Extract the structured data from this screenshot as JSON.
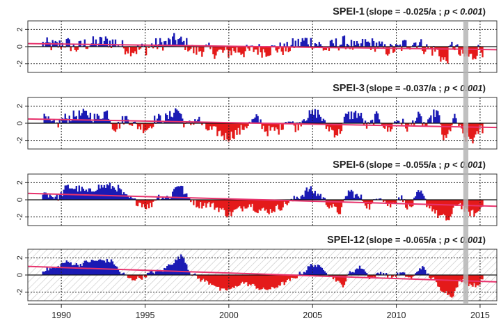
{
  "chart_data": {
    "type": "area",
    "x_axis": {
      "range": [
        1988.0,
        2016.0
      ],
      "ticks": [
        1990,
        1995,
        2000,
        2005,
        2010,
        2015
      ],
      "tick_labels": [
        "1990",
        "1995",
        "2000",
        "2005",
        "2010",
        "2015"
      ]
    },
    "y_axis": {
      "range": [
        -3,
        3
      ],
      "ticks": [
        2,
        0,
        -2
      ],
      "tick_labels": [
        "2",
        "0",
        "-2"
      ]
    },
    "grid": true,
    "colors": {
      "positive": "#1a1ab4",
      "negative": "#e41a1a",
      "trend": "#e8336d",
      "highlight": "#b5b5b5",
      "grid": "#222222"
    },
    "highlight_band_x": [
      2014.0,
      2014.3
    ],
    "panels": [
      {
        "title": "SPEI-1",
        "stat_open": "(slope = -0.025/a ; ",
        "stat_p": "p < 0.001",
        "stat_close": ")",
        "slope": -0.025,
        "trend_start": 0.35,
        "trend_end": -0.35,
        "amplitude": 0.85,
        "hatched": false,
        "anchors": [
          [
            1988.9,
            0.3
          ],
          [
            1989.6,
            0.1
          ],
          [
            1990.3,
            0.4
          ],
          [
            1990.9,
            -0.2
          ],
          [
            1991.4,
            0.3
          ],
          [
            1992.0,
            0.4
          ],
          [
            1992.6,
            0.6
          ],
          [
            1993.2,
            0.5
          ],
          [
            1993.8,
            -0.1
          ],
          [
            1994.4,
            -0.4
          ],
          [
            1995.0,
            -0.2
          ],
          [
            1995.6,
            0.2
          ],
          [
            1996.2,
            0.4
          ],
          [
            1996.9,
            0.8
          ],
          [
            1997.4,
            0.3
          ],
          [
            1998.0,
            -0.5
          ],
          [
            1998.6,
            -0.3
          ],
          [
            1999.2,
            -0.6
          ],
          [
            1999.8,
            -0.7
          ],
          [
            2000.4,
            -0.4
          ],
          [
            2001.0,
            -0.6
          ],
          [
            2001.6,
            -0.3
          ],
          [
            2002.2,
            -0.5
          ],
          [
            2002.8,
            -0.2
          ],
          [
            2003.4,
            -0.3
          ],
          [
            2004.0,
            0.3
          ],
          [
            2004.6,
            0.7
          ],
          [
            2005.2,
            0.4
          ],
          [
            2005.8,
            -0.3
          ],
          [
            2006.4,
            0.3
          ],
          [
            2007.0,
            0.5
          ],
          [
            2007.6,
            -0.2
          ],
          [
            2008.2,
            0.4
          ],
          [
            2008.8,
            0.2
          ],
          [
            2009.4,
            -0.4
          ],
          [
            2010.0,
            -0.3
          ],
          [
            2010.6,
            0.3
          ],
          [
            2011.2,
            0.5
          ],
          [
            2011.8,
            -0.2
          ],
          [
            2012.4,
            -0.5
          ],
          [
            2012.9,
            -1.7
          ],
          [
            2013.4,
            0.2
          ],
          [
            2013.9,
            -1.1
          ],
          [
            2014.5,
            -1.2
          ],
          [
            2014.9,
            -0.4
          ]
        ]
      },
      {
        "title": "SPEI-3",
        "stat_open": "(slope = -0.037/a ; ",
        "stat_p": "p < 0.001",
        "stat_close": ")",
        "slope": -0.037,
        "trend_start": 0.5,
        "trend_end": -0.5,
        "amplitude": 0.65,
        "hatched": false,
        "anchors": [
          [
            1988.9,
            0.5
          ],
          [
            1989.6,
            -0.2
          ],
          [
            1990.3,
            0.6
          ],
          [
            1990.9,
            0.9
          ],
          [
            1991.5,
            1.1
          ],
          [
            1992.1,
            0.6
          ],
          [
            1992.7,
            1.3
          ],
          [
            1993.2,
            -0.5
          ],
          [
            1993.9,
            0.6
          ],
          [
            1994.5,
            -0.3
          ],
          [
            1995.1,
            -0.6
          ],
          [
            1995.7,
            0.5
          ],
          [
            1996.3,
            0.6
          ],
          [
            1996.9,
            1.6
          ],
          [
            1997.5,
            -0.3
          ],
          [
            1998.1,
            0.5
          ],
          [
            1998.7,
            -0.7
          ],
          [
            1999.3,
            -1.0
          ],
          [
            1999.9,
            -1.6
          ],
          [
            2000.5,
            -1.1
          ],
          [
            2001.1,
            -0.2
          ],
          [
            2001.7,
            0.5
          ],
          [
            2002.3,
            -0.9
          ],
          [
            2002.9,
            -0.8
          ],
          [
            2003.5,
            0.4
          ],
          [
            2004.0,
            -0.4
          ],
          [
            2004.6,
            0.8
          ],
          [
            2005.3,
            1.2
          ],
          [
            2005.9,
            -0.5
          ],
          [
            2006.5,
            -1.2
          ],
          [
            2007.1,
            0.9
          ],
          [
            2007.7,
            1.1
          ],
          [
            2008.3,
            -0.4
          ],
          [
            2008.9,
            0.8
          ],
          [
            2009.5,
            -0.8
          ],
          [
            2010.1,
            0.4
          ],
          [
            2010.7,
            -0.5
          ],
          [
            2011.3,
            0.7
          ],
          [
            2011.8,
            -0.3
          ],
          [
            2012.4,
            1.3
          ],
          [
            2012.9,
            -2.0
          ],
          [
            2013.5,
            0.5
          ],
          [
            2014.1,
            -1.7
          ],
          [
            2014.7,
            -1.9
          ],
          [
            2015.0,
            -0.6
          ]
        ]
      },
      {
        "title": "SPEI-6",
        "stat_open": "(slope = -0.055/a ; ",
        "stat_p": "p < 0.001",
        "stat_close": ")",
        "slope": -0.055,
        "trend_start": 0.75,
        "trend_end": -0.75,
        "amplitude": 0.45,
        "hatched": false,
        "anchors": [
          [
            1988.9,
            0.8
          ],
          [
            1989.8,
            0.3
          ],
          [
            1990.4,
            1.5
          ],
          [
            1991.0,
            1.3
          ],
          [
            1991.6,
            0.9
          ],
          [
            1992.2,
            1.5
          ],
          [
            1992.8,
            1.6
          ],
          [
            1993.3,
            1.4
          ],
          [
            1993.9,
            0.3
          ],
          [
            1994.6,
            -0.3
          ],
          [
            1995.2,
            -0.8
          ],
          [
            1995.8,
            0.4
          ],
          [
            1996.4,
            0.3
          ],
          [
            1997.0,
            1.8
          ],
          [
            1997.6,
            0.2
          ],
          [
            1998.2,
            -0.6
          ],
          [
            1998.8,
            -0.5
          ],
          [
            1999.4,
            -1.0
          ],
          [
            2000.0,
            -1.7
          ],
          [
            2000.6,
            -1.1
          ],
          [
            2001.2,
            -0.5
          ],
          [
            2001.8,
            -1.2
          ],
          [
            2002.4,
            -1.3
          ],
          [
            2003.0,
            -0.9
          ],
          [
            2003.6,
            -0.3
          ],
          [
            2004.2,
            0.4
          ],
          [
            2004.8,
            1.2
          ],
          [
            2005.4,
            0.6
          ],
          [
            2006.0,
            -0.6
          ],
          [
            2006.6,
            -1.4
          ],
          [
            2007.2,
            1.0
          ],
          [
            2007.8,
            0.3
          ],
          [
            2008.4,
            -0.8
          ],
          [
            2009.0,
            0.5
          ],
          [
            2009.6,
            -0.7
          ],
          [
            2010.2,
            0.3
          ],
          [
            2010.8,
            -0.9
          ],
          [
            2011.4,
            0.8
          ],
          [
            2012.0,
            -0.8
          ],
          [
            2012.6,
            -1.9
          ],
          [
            2013.1,
            -2.3
          ],
          [
            2013.7,
            -0.4
          ],
          [
            2014.3,
            -1.5
          ],
          [
            2014.8,
            -1.6
          ],
          [
            2015.1,
            -0.8
          ]
        ]
      },
      {
        "title": "SPEI-12",
        "stat_open": "(slope = -0.065/a ; ",
        "stat_p": "p < 0.001",
        "stat_close": ")",
        "slope": -0.065,
        "trend_start": 1.0,
        "trend_end": -0.8,
        "amplitude": 0.25,
        "hatched": true,
        "anchors": [
          [
            1988.9,
            0.6
          ],
          [
            1989.6,
            0.8
          ],
          [
            1990.3,
            1.5
          ],
          [
            1991.0,
            1.2
          ],
          [
            1991.7,
            1.6
          ],
          [
            1992.4,
            1.7
          ],
          [
            1993.0,
            1.6
          ],
          [
            1993.6,
            0.2
          ],
          [
            1994.2,
            -0.5
          ],
          [
            1994.8,
            -0.3
          ],
          [
            1995.4,
            0.3
          ],
          [
            1996.0,
            0.5
          ],
          [
            1996.6,
            1.4
          ],
          [
            1997.2,
            2.2
          ],
          [
            1997.8,
            0.1
          ],
          [
            1998.4,
            -0.6
          ],
          [
            1999.0,
            -1.0
          ],
          [
            1999.6,
            -1.8
          ],
          [
            2000.2,
            -1.6
          ],
          [
            2000.8,
            -0.9
          ],
          [
            2001.4,
            -1.2
          ],
          [
            2002.0,
            -1.7
          ],
          [
            2002.6,
            -1.6
          ],
          [
            2003.2,
            -1.0
          ],
          [
            2003.8,
            -0.5
          ],
          [
            2004.4,
            0.3
          ],
          [
            2005.0,
            1.2
          ],
          [
            2005.6,
            0.8
          ],
          [
            2006.2,
            -0.3
          ],
          [
            2006.8,
            -1.2
          ],
          [
            2007.3,
            0.4
          ],
          [
            2007.9,
            0.9
          ],
          [
            2008.5,
            -0.4
          ],
          [
            2009.1,
            0.3
          ],
          [
            2009.7,
            -0.2
          ],
          [
            2010.3,
            0.2
          ],
          [
            2010.9,
            -0.4
          ],
          [
            2011.5,
            0.9
          ],
          [
            2012.1,
            -0.3
          ],
          [
            2012.7,
            -1.7
          ],
          [
            2013.3,
            -2.4
          ],
          [
            2013.9,
            -0.6
          ],
          [
            2014.4,
            -1.1
          ],
          [
            2014.8,
            -1.2
          ],
          [
            2015.1,
            -0.7
          ]
        ]
      }
    ]
  }
}
